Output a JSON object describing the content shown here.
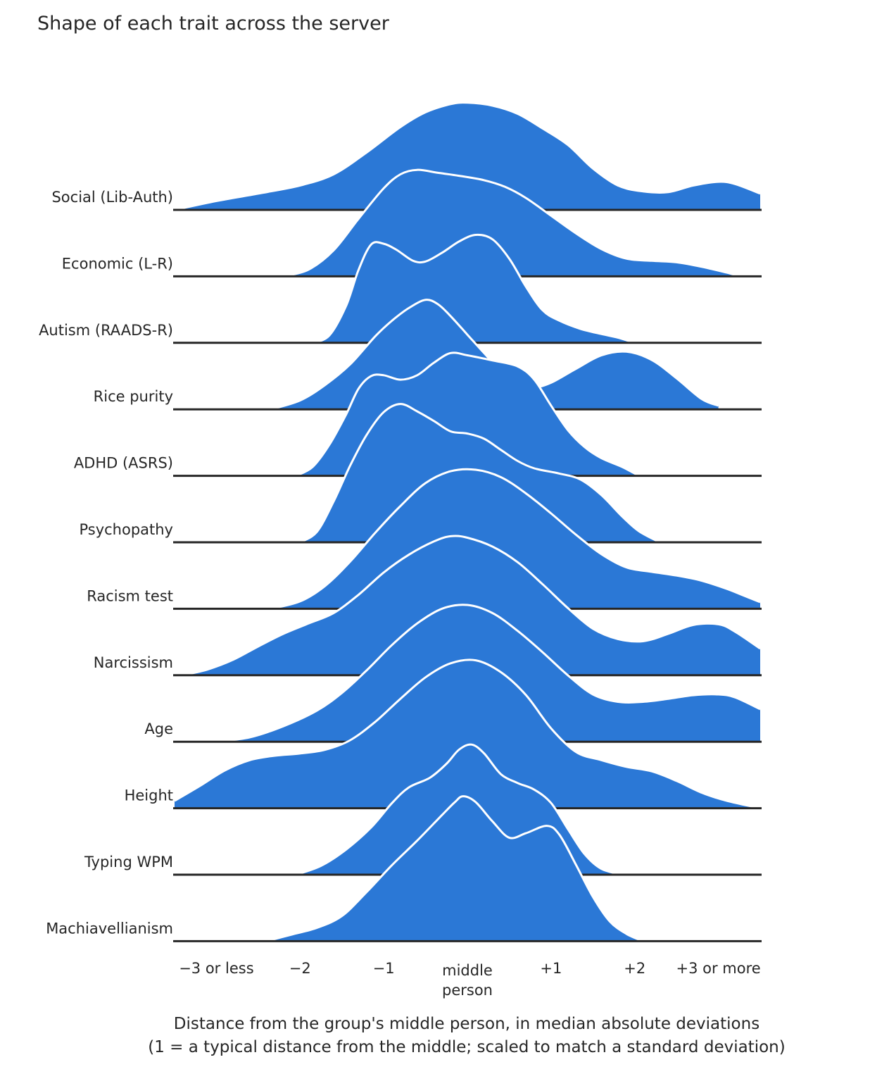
{
  "chart_data": {
    "type": "ridgeline",
    "title": "Shape of each trait across the server",
    "xlabel": [
      "Distance from the group's middle person, in median absolute deviations",
      "(1 = a typical distance from the middle; scaled to match a standard deviation)"
    ],
    "xlim": [
      -3.5,
      3.5
    ],
    "xticks": [
      {
        "x": -3,
        "label": [
          "−3 or less"
        ]
      },
      {
        "x": -2,
        "label": [
          "−2"
        ]
      },
      {
        "x": -1,
        "label": [
          "−1"
        ]
      },
      {
        "x": 0,
        "label": [
          "middle",
          "person"
        ]
      },
      {
        "x": 1,
        "label": [
          "+1"
        ]
      },
      {
        "x": 2,
        "label": [
          "+2"
        ]
      },
      {
        "x": 3,
        "label": [
          "+3 or more"
        ]
      }
    ],
    "fill_color": "#2b78d6",
    "outline_color": "#ffffff",
    "baseline_color": "#262626",
    "series": [
      {
        "name": "Social (Lib-Auth)",
        "points": [
          [
            -3.5,
            0
          ],
          [
            -3.0,
            0.12
          ],
          [
            -2.5,
            0.22
          ],
          [
            -2.0,
            0.33
          ],
          [
            -1.6,
            0.48
          ],
          [
            -1.2,
            0.78
          ],
          [
            -0.8,
            1.12
          ],
          [
            -0.5,
            1.32
          ],
          [
            -0.2,
            1.43
          ],
          [
            0.0,
            1.45
          ],
          [
            0.3,
            1.41
          ],
          [
            0.6,
            1.3
          ],
          [
            0.9,
            1.1
          ],
          [
            1.2,
            0.88
          ],
          [
            1.5,
            0.56
          ],
          [
            1.8,
            0.33
          ],
          [
            2.1,
            0.25
          ],
          [
            2.4,
            0.24
          ],
          [
            2.7,
            0.33
          ],
          [
            3.0,
            0.38
          ],
          [
            3.2,
            0.35
          ],
          [
            3.5,
            0.22
          ]
        ]
      },
      {
        "name": "Economic (L-R)",
        "points": [
          [
            -2.2,
            0
          ],
          [
            -1.9,
            0.09
          ],
          [
            -1.6,
            0.35
          ],
          [
            -1.3,
            0.78
          ],
          [
            -1.0,
            1.19
          ],
          [
            -0.8,
            1.38
          ],
          [
            -0.6,
            1.44
          ],
          [
            -0.35,
            1.4
          ],
          [
            -0.1,
            1.36
          ],
          [
            0.2,
            1.3
          ],
          [
            0.45,
            1.21
          ],
          [
            0.7,
            1.06
          ],
          [
            1.0,
            0.82
          ],
          [
            1.3,
            0.58
          ],
          [
            1.6,
            0.37
          ],
          [
            1.9,
            0.24
          ],
          [
            2.2,
            0.21
          ],
          [
            2.5,
            0.19
          ],
          [
            2.8,
            0.13
          ],
          [
            3.1,
            0.05
          ],
          [
            3.25,
            0
          ]
        ]
      },
      {
        "name": "Autism (RAADS-R)",
        "points": [
          [
            -1.85,
            0
          ],
          [
            -1.65,
            0.1
          ],
          [
            -1.45,
            0.5
          ],
          [
            -1.3,
            0.99
          ],
          [
            -1.15,
            1.33
          ],
          [
            -1.0,
            1.34
          ],
          [
            -0.85,
            1.26
          ],
          [
            -0.65,
            1.11
          ],
          [
            -0.5,
            1.1
          ],
          [
            -0.3,
            1.22
          ],
          [
            -0.1,
            1.37
          ],
          [
            0.1,
            1.46
          ],
          [
            0.3,
            1.4
          ],
          [
            0.5,
            1.14
          ],
          [
            0.7,
            0.76
          ],
          [
            0.9,
            0.44
          ],
          [
            1.1,
            0.3
          ],
          [
            1.35,
            0.19
          ],
          [
            1.6,
            0.12
          ],
          [
            1.8,
            0.07
          ],
          [
            2.0,
            0
          ]
        ]
      },
      {
        "name": "Rice purity",
        "points": [
          [
            -2.35,
            0
          ],
          [
            -2.0,
            0.12
          ],
          [
            -1.7,
            0.33
          ],
          [
            -1.4,
            0.61
          ],
          [
            -1.1,
            0.99
          ],
          [
            -0.9,
            1.2
          ],
          [
            -0.7,
            1.37
          ],
          [
            -0.5,
            1.48
          ],
          [
            -0.35,
            1.42
          ],
          [
            -0.2,
            1.26
          ],
          [
            0.0,
            1.01
          ],
          [
            0.2,
            0.76
          ],
          [
            0.4,
            0.52
          ],
          [
            0.6,
            0.35
          ],
          [
            0.8,
            0.3
          ],
          [
            1.0,
            0.36
          ],
          [
            1.3,
            0.55
          ],
          [
            1.6,
            0.73
          ],
          [
            1.9,
            0.78
          ],
          [
            2.2,
            0.67
          ],
          [
            2.5,
            0.42
          ],
          [
            2.8,
            0.14
          ],
          [
            3.0,
            0.05
          ]
        ]
      },
      {
        "name": "ADHD (ASRS)",
        "points": [
          [
            -2.05,
            0
          ],
          [
            -1.85,
            0.12
          ],
          [
            -1.65,
            0.42
          ],
          [
            -1.45,
            0.83
          ],
          [
            -1.3,
            1.18
          ],
          [
            -1.15,
            1.35
          ],
          [
            -1.0,
            1.36
          ],
          [
            -0.8,
            1.3
          ],
          [
            -0.6,
            1.36
          ],
          [
            -0.4,
            1.53
          ],
          [
            -0.2,
            1.66
          ],
          [
            0.0,
            1.63
          ],
          [
            0.3,
            1.56
          ],
          [
            0.6,
            1.48
          ],
          [
            0.8,
            1.3
          ],
          [
            1.0,
            0.95
          ],
          [
            1.2,
            0.62
          ],
          [
            1.4,
            0.39
          ],
          [
            1.6,
            0.24
          ],
          [
            1.85,
            0.12
          ],
          [
            2.05,
            0
          ]
        ]
      },
      {
        "name": "Psychopathy",
        "points": [
          [
            -2.0,
            0
          ],
          [
            -1.8,
            0.14
          ],
          [
            -1.6,
            0.55
          ],
          [
            -1.4,
            1.04
          ],
          [
            -1.2,
            1.46
          ],
          [
            -1.0,
            1.76
          ],
          [
            -0.8,
            1.87
          ],
          [
            -0.6,
            1.77
          ],
          [
            -0.4,
            1.64
          ],
          [
            -0.2,
            1.5
          ],
          [
            0.0,
            1.47
          ],
          [
            0.2,
            1.4
          ],
          [
            0.4,
            1.25
          ],
          [
            0.6,
            1.1
          ],
          [
            0.8,
            1.0
          ],
          [
            1.1,
            0.93
          ],
          [
            1.35,
            0.85
          ],
          [
            1.6,
            0.64
          ],
          [
            1.85,
            0.35
          ],
          [
            2.05,
            0.15
          ],
          [
            2.3,
            0
          ]
        ]
      },
      {
        "name": "Racism test",
        "points": [
          [
            -2.35,
            0
          ],
          [
            -2.0,
            0.1
          ],
          [
            -1.7,
            0.31
          ],
          [
            -1.4,
            0.64
          ],
          [
            -1.1,
            1.03
          ],
          [
            -0.8,
            1.39
          ],
          [
            -0.5,
            1.7
          ],
          [
            -0.2,
            1.86
          ],
          [
            0.1,
            1.88
          ],
          [
            0.4,
            1.78
          ],
          [
            0.7,
            1.56
          ],
          [
            1.0,
            1.29
          ],
          [
            1.3,
            1.0
          ],
          [
            1.6,
            0.74
          ],
          [
            1.9,
            0.56
          ],
          [
            2.2,
            0.5
          ],
          [
            2.5,
            0.45
          ],
          [
            2.8,
            0.38
          ],
          [
            3.1,
            0.27
          ],
          [
            3.3,
            0.18
          ],
          [
            3.5,
            0.09
          ]
        ]
      },
      {
        "name": "Narcissism",
        "points": [
          [
            -3.4,
            0
          ],
          [
            -3.1,
            0.08
          ],
          [
            -2.8,
            0.21
          ],
          [
            -2.5,
            0.39
          ],
          [
            -2.2,
            0.56
          ],
          [
            -1.9,
            0.7
          ],
          [
            -1.6,
            0.84
          ],
          [
            -1.3,
            1.09
          ],
          [
            -1.0,
            1.39
          ],
          [
            -0.7,
            1.63
          ],
          [
            -0.4,
            1.81
          ],
          [
            -0.2,
            1.88
          ],
          [
            0.0,
            1.86
          ],
          [
            0.3,
            1.74
          ],
          [
            0.6,
            1.53
          ],
          [
            0.9,
            1.23
          ],
          [
            1.2,
            0.91
          ],
          [
            1.5,
            0.63
          ],
          [
            1.8,
            0.49
          ],
          [
            2.1,
            0.46
          ],
          [
            2.4,
            0.56
          ],
          [
            2.7,
            0.68
          ],
          [
            3.0,
            0.69
          ],
          [
            3.2,
            0.59
          ],
          [
            3.5,
            0.36
          ]
        ]
      },
      {
        "name": "Age",
        "points": [
          [
            -3.0,
            0
          ],
          [
            -2.6,
            0.06
          ],
          [
            -2.2,
            0.21
          ],
          [
            -1.8,
            0.42
          ],
          [
            -1.5,
            0.66
          ],
          [
            -1.2,
            0.97
          ],
          [
            -0.9,
            1.31
          ],
          [
            -0.6,
            1.6
          ],
          [
            -0.3,
            1.8
          ],
          [
            0.0,
            1.85
          ],
          [
            0.3,
            1.74
          ],
          [
            0.6,
            1.5
          ],
          [
            0.9,
            1.21
          ],
          [
            1.2,
            0.9
          ],
          [
            1.5,
            0.64
          ],
          [
            1.8,
            0.54
          ],
          [
            2.1,
            0.54
          ],
          [
            2.4,
            0.58
          ],
          [
            2.7,
            0.63
          ],
          [
            3.0,
            0.64
          ],
          [
            3.2,
            0.6
          ],
          [
            3.5,
            0.44
          ]
        ]
      },
      {
        "name": "Height",
        "points": [
          [
            -3.5,
            0.1
          ],
          [
            -3.2,
            0.3
          ],
          [
            -2.9,
            0.51
          ],
          [
            -2.6,
            0.65
          ],
          [
            -2.3,
            0.71
          ],
          [
            -2.0,
            0.74
          ],
          [
            -1.7,
            0.79
          ],
          [
            -1.4,
            0.92
          ],
          [
            -1.1,
            1.17
          ],
          [
            -0.8,
            1.48
          ],
          [
            -0.5,
            1.77
          ],
          [
            -0.2,
            1.96
          ],
          [
            0.1,
            2.0
          ],
          [
            0.4,
            1.84
          ],
          [
            0.7,
            1.53
          ],
          [
            1.0,
            1.08
          ],
          [
            1.3,
            0.76
          ],
          [
            1.6,
            0.65
          ],
          [
            1.9,
            0.56
          ],
          [
            2.2,
            0.5
          ],
          [
            2.5,
            0.37
          ],
          [
            2.8,
            0.21
          ],
          [
            3.1,
            0.1
          ],
          [
            3.5,
            0
          ]
        ]
      },
      {
        "name": "Typing WPM",
        "points": [
          [
            -2.05,
            0
          ],
          [
            -1.75,
            0.12
          ],
          [
            -1.45,
            0.34
          ],
          [
            -1.15,
            0.64
          ],
          [
            -0.9,
            0.97
          ],
          [
            -0.7,
            1.18
          ],
          [
            -0.45,
            1.31
          ],
          [
            -0.25,
            1.5
          ],
          [
            -0.1,
            1.69
          ],
          [
            0.05,
            1.76
          ],
          [
            0.2,
            1.64
          ],
          [
            0.4,
            1.36
          ],
          [
            0.6,
            1.24
          ],
          [
            0.8,
            1.15
          ],
          [
            1.0,
            0.97
          ],
          [
            1.2,
            0.62
          ],
          [
            1.4,
            0.28
          ],
          [
            1.6,
            0.08
          ],
          [
            1.85,
            0
          ]
        ]
      },
      {
        "name": "Machiavellianism",
        "points": [
          [
            -2.4,
            0
          ],
          [
            -2.1,
            0.09
          ],
          [
            -1.8,
            0.18
          ],
          [
            -1.5,
            0.34
          ],
          [
            -1.2,
            0.67
          ],
          [
            -0.9,
            1.03
          ],
          [
            -0.6,
            1.36
          ],
          [
            -0.3,
            1.71
          ],
          [
            -0.15,
            1.88
          ],
          [
            -0.05,
            1.96
          ],
          [
            0.1,
            1.88
          ],
          [
            0.3,
            1.62
          ],
          [
            0.5,
            1.4
          ],
          [
            0.7,
            1.46
          ],
          [
            0.95,
            1.56
          ],
          [
            1.1,
            1.44
          ],
          [
            1.3,
            1.03
          ],
          [
            1.5,
            0.6
          ],
          [
            1.7,
            0.27
          ],
          [
            1.9,
            0.1
          ],
          [
            2.1,
            0
          ]
        ]
      }
    ]
  }
}
